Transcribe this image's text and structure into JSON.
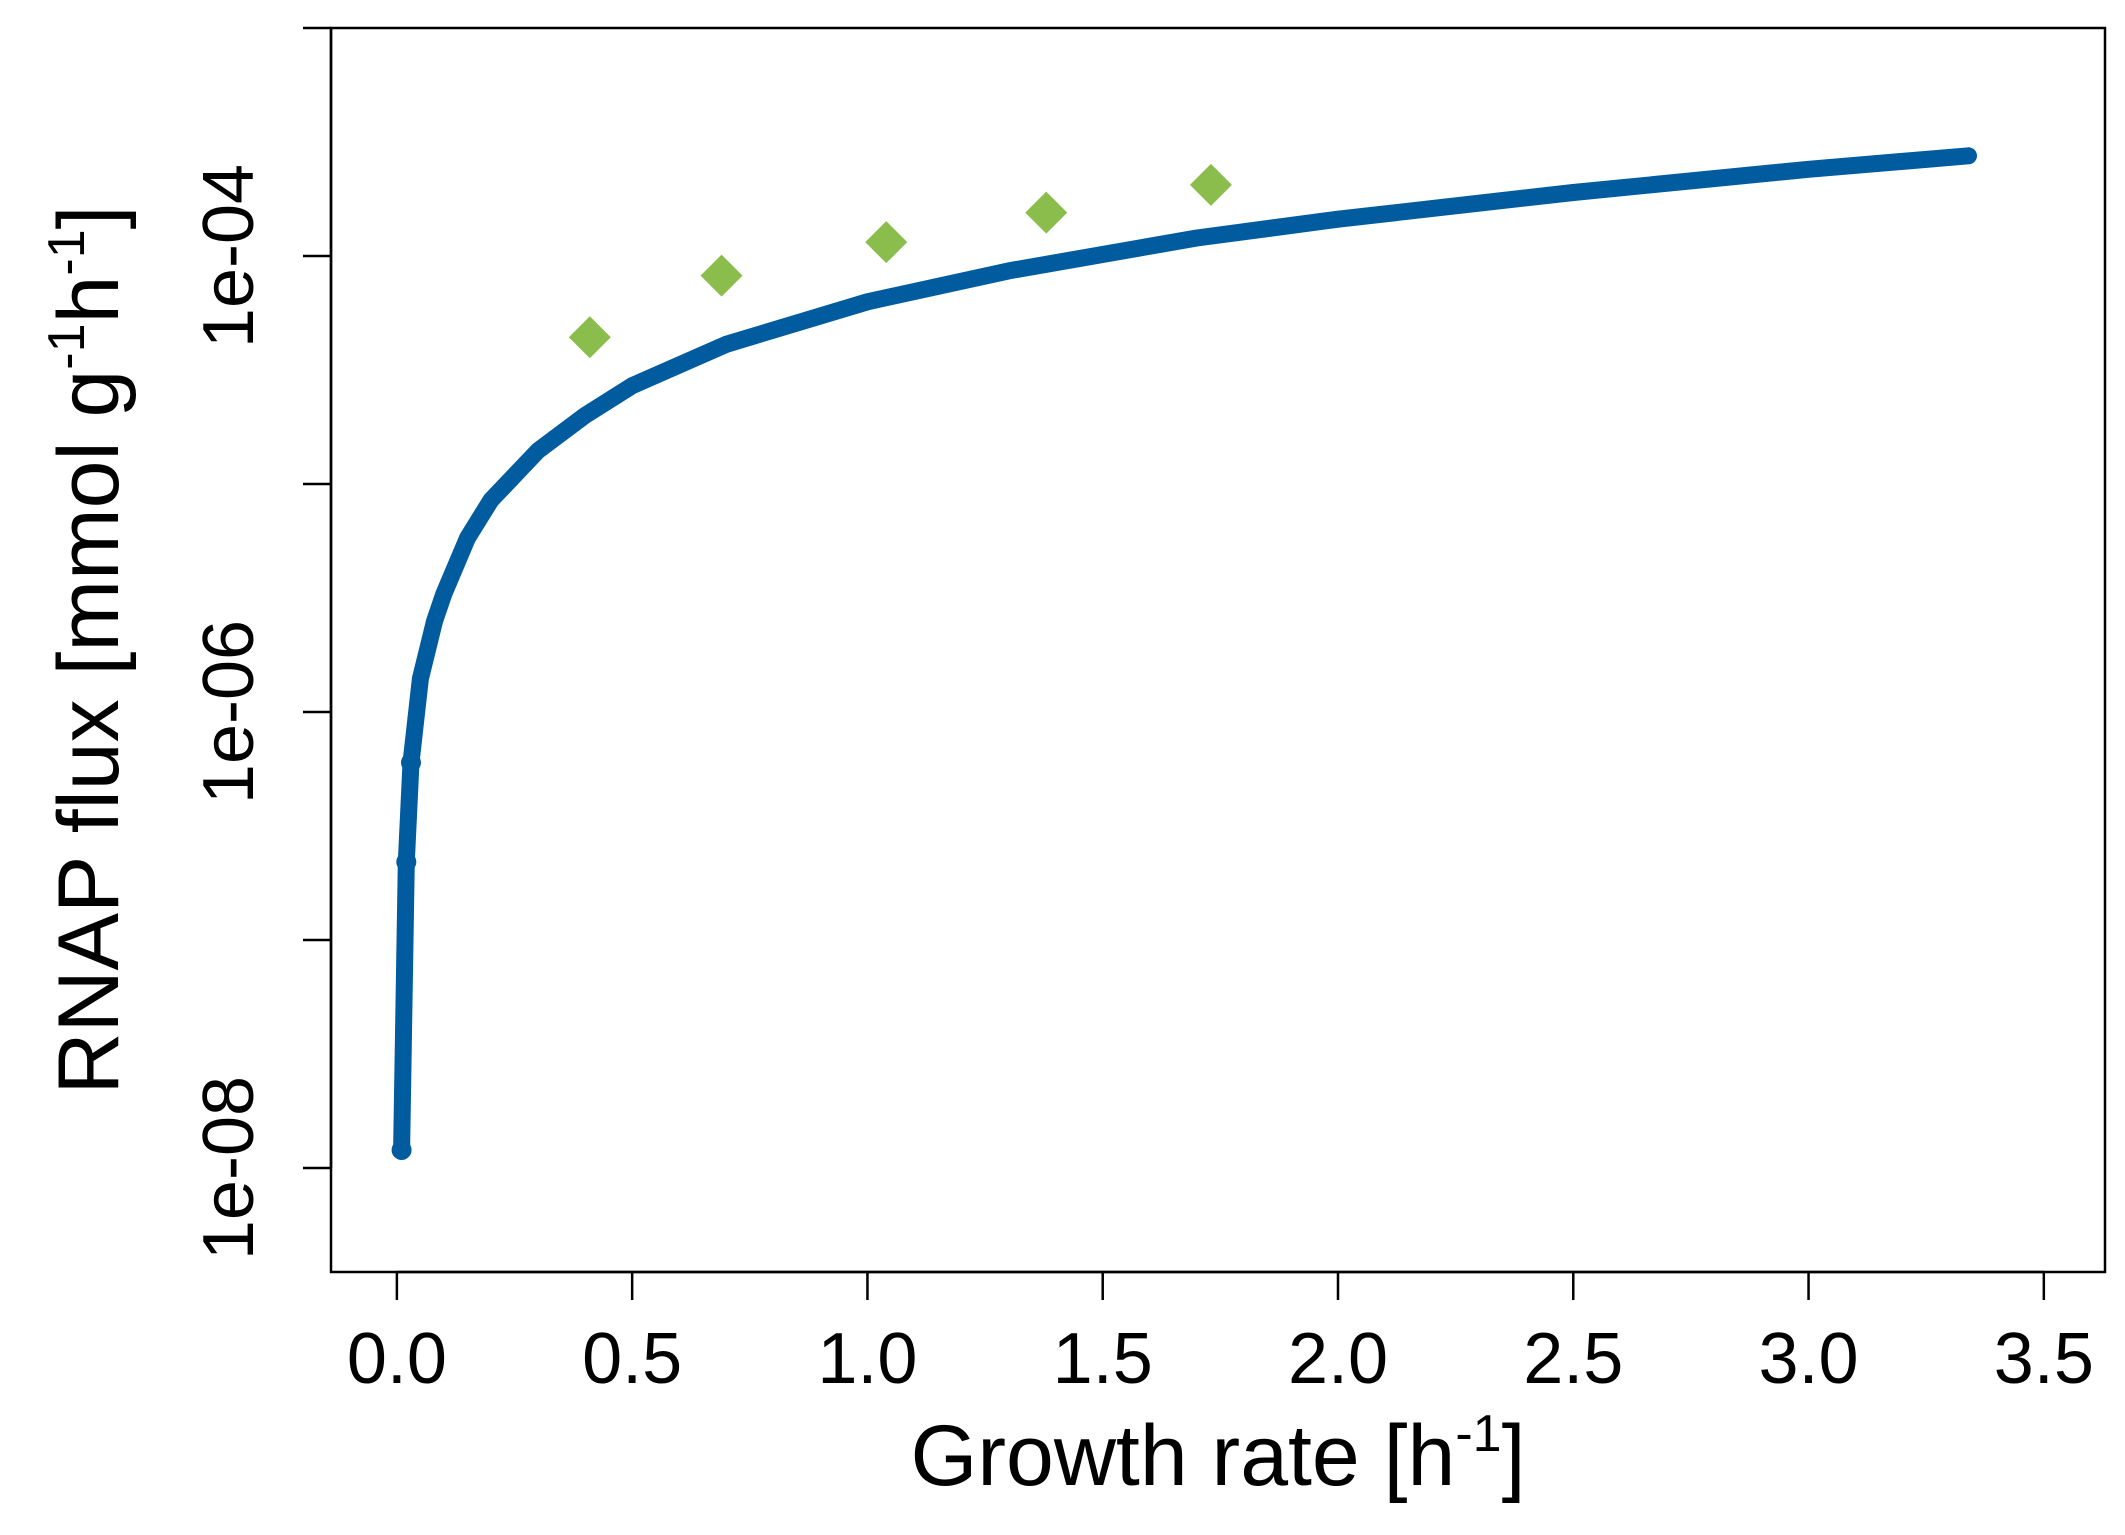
{
  "colors": {
    "model_line": "#005b9f",
    "measurements": "#8bbd4d",
    "axis": "#000000",
    "background": "#ffffff"
  },
  "chart_data": {
    "type": "scatter",
    "title": "",
    "xlabel": {
      "main": "Growth rate [h",
      "sup": "-1",
      "close": "]"
    },
    "ylabel": {
      "main": "RNAP flux [mmol g",
      "sup1": "-1",
      "mid": "h",
      "sup2": "-1",
      "close": "]"
    },
    "x_scale": "linear",
    "y_scale": "log10",
    "xlim": [
      -0.14,
      3.63
    ],
    "ylim": [
      3.5e-09,
      0.001
    ],
    "x_ticks": [
      0.0,
      0.5,
      1.0,
      1.5,
      2.0,
      2.5,
      3.0,
      3.5
    ],
    "x_tick_labels": [
      "0.0",
      "0.5",
      "1.0",
      "1.5",
      "2.0",
      "2.5",
      "3.0",
      "3.5"
    ],
    "y_ticks": [
      1e-08,
      1e-07,
      1e-06,
      1e-05,
      0.0001,
      0.001
    ],
    "y_tick_labels": [
      "1e-08",
      "",
      "1e-06",
      "",
      "1e-04",
      ""
    ],
    "grid": false,
    "legend": "none",
    "series": [
      {
        "type": "line",
        "marker": "circle",
        "x": [
          0.01,
          0.02,
          0.03,
          0.05,
          0.08,
          0.1,
          0.15,
          0.2,
          0.3,
          0.4,
          0.5,
          0.7,
          1.0,
          1.3,
          1.7,
          2.0,
          2.5,
          3.0,
          3.34
        ],
        "y": [
          1.2e-08,
          2.2e-07,
          6e-07,
          1.4e-06,
          2.5e-06,
          3.3e-06,
          5.8e-06,
          8.5e-06,
          1.4e-05,
          2e-05,
          2.7e-05,
          4.1e-05,
          6.3e-05,
          8.6e-05,
          0.00012,
          0.000145,
          0.00019,
          0.00024,
          0.000275
        ]
      },
      {
        "type": "scatter",
        "marker": "diamond",
        "x": [
          0.41,
          0.69,
          1.04,
          1.38,
          1.73
        ],
        "y": [
          4.4e-05,
          8.2e-05,
          0.000115,
          0.000155,
          0.000205
        ]
      }
    ]
  }
}
